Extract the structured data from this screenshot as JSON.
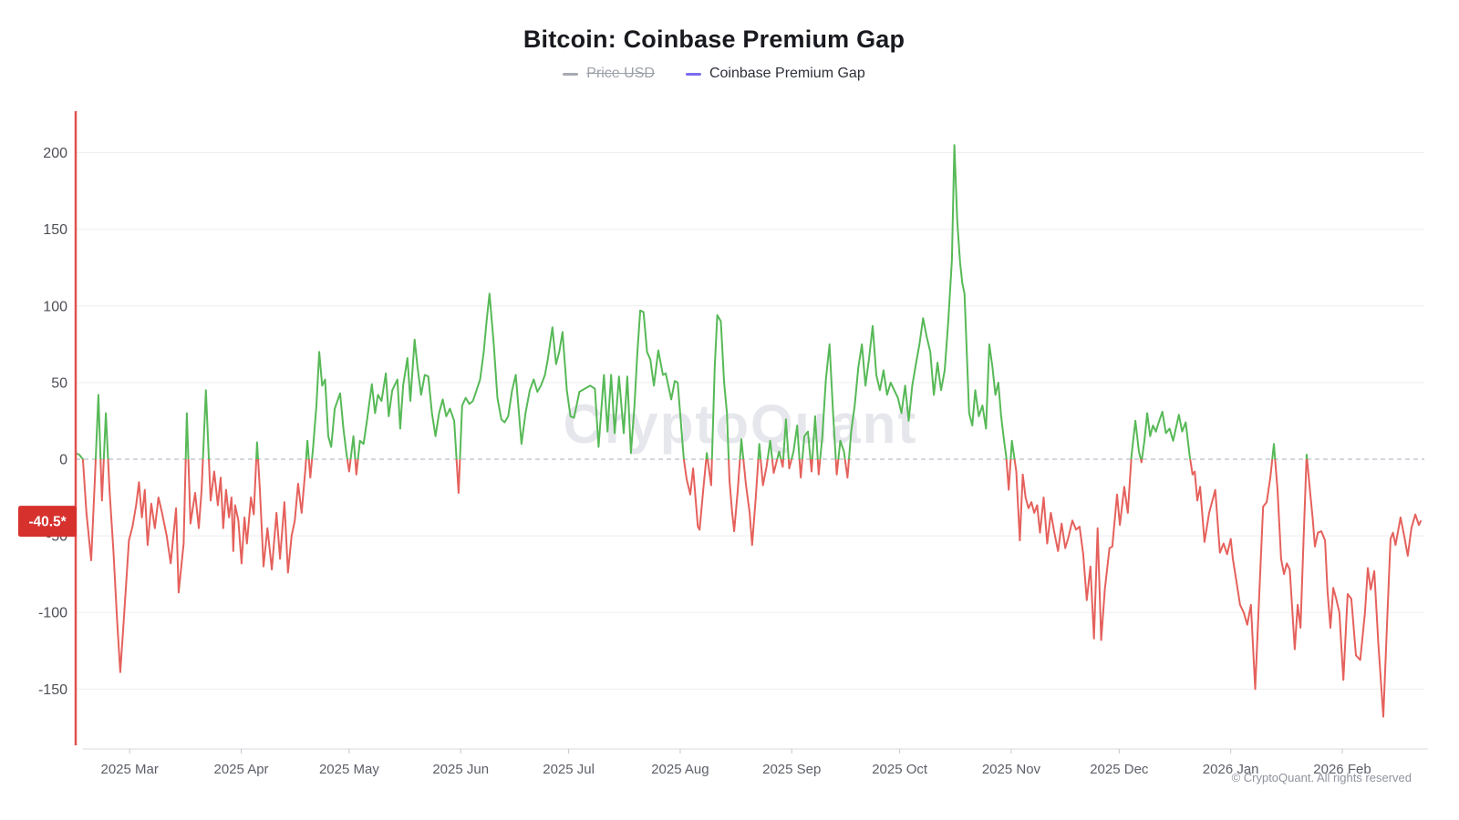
{
  "header": {
    "title": "Bitcoin: Coinbase Premium Gap"
  },
  "legend": [
    {
      "label": "Price USD",
      "color": "#a8aab3",
      "disabled": true
    },
    {
      "label": "Coinbase Premium Gap",
      "color": "#7b6cf0",
      "disabled": false
    }
  ],
  "watermark": "CryptoQuant",
  "footer": {
    "copyright": "© CryptoQuant. All rights reserved"
  },
  "last_value_badge": {
    "text": "-40.5*",
    "value": -40.5,
    "color": "#d7312e"
  },
  "chart_data": {
    "type": "line",
    "title": "Bitcoin: Coinbase Premium Gap",
    "series_name": "Coinbase Premium Gap",
    "x_unit": "days since 2025-02-14",
    "final_value": -40.5,
    "ylim": [
      -190,
      227
    ],
    "grid": true,
    "legend_position": "top",
    "zero_line_dashed": true,
    "colors": {
      "positive": "#57b957",
      "negative": "#e5615c",
      "axis_line": "#e2514d"
    },
    "y_ticks": [
      {
        "label": "200",
        "value": 200
      },
      {
        "label": "150",
        "value": 150
      },
      {
        "label": "100",
        "value": 100
      },
      {
        "label": "50",
        "value": 50
      },
      {
        "label": "0",
        "value": 0
      },
      {
        "label": "-50",
        "value": -50
      },
      {
        "label": "-100",
        "value": -100
      },
      {
        "label": "-150",
        "value": -150
      }
    ],
    "x_ticks": [
      {
        "label": "2025 Mar",
        "day": 15
      },
      {
        "label": "2025 Apr",
        "day": 46
      },
      {
        "label": "2025 May",
        "day": 76
      },
      {
        "label": "2025 Jun",
        "day": 107
      },
      {
        "label": "2025 Jul",
        "day": 137
      },
      {
        "label": "2025 Aug",
        "day": 168
      },
      {
        "label": "2025 Sep",
        "day": 199
      },
      {
        "label": "2025 Oct",
        "day": 229
      },
      {
        "label": "2025 Nov",
        "day": 260
      },
      {
        "label": "2025 Dec",
        "day": 290
      },
      {
        "label": "2026 Jan",
        "day": 321
      },
      {
        "label": "2026 Feb",
        "day": 352
      }
    ],
    "points": [
      [
        0,
        4
      ],
      [
        1,
        3
      ],
      [
        2,
        0
      ],
      [
        3,
        -35
      ],
      [
        4.3,
        -66
      ],
      [
        5.3,
        -15
      ],
      [
        6.3,
        42
      ],
      [
        7.3,
        -27
      ],
      [
        8.4,
        30
      ],
      [
        9.4,
        -20
      ],
      [
        10.5,
        -60
      ],
      [
        11.5,
        -105
      ],
      [
        12.4,
        -139
      ],
      [
        13.5,
        -100
      ],
      [
        14.8,
        -53
      ],
      [
        15.8,
        -44
      ],
      [
        16.8,
        -30
      ],
      [
        17.6,
        -15
      ],
      [
        18.4,
        -38
      ],
      [
        19.2,
        -20
      ],
      [
        20,
        -56
      ],
      [
        21,
        -29
      ],
      [
        22,
        -45
      ],
      [
        23,
        -25
      ],
      [
        24,
        -35
      ],
      [
        25.3,
        -50
      ],
      [
        26.4,
        -68
      ],
      [
        27.9,
        -32
      ],
      [
        28.6,
        -87
      ],
      [
        30,
        -55
      ],
      [
        30.9,
        30
      ],
      [
        31.9,
        -42
      ],
      [
        33.2,
        -22
      ],
      [
        34.2,
        -45
      ],
      [
        35,
        -20
      ],
      [
        36.2,
        45
      ],
      [
        37.5,
        -27
      ],
      [
        38.5,
        -8
      ],
      [
        39.5,
        -30
      ],
      [
        40.3,
        -12
      ],
      [
        41,
        -45
      ],
      [
        41.8,
        -20
      ],
      [
        42.6,
        -38
      ],
      [
        43.3,
        -25
      ],
      [
        43.8,
        -60
      ],
      [
        44.3,
        -30
      ],
      [
        45.2,
        -40
      ],
      [
        46.1,
        -68
      ],
      [
        46.9,
        -38
      ],
      [
        47.6,
        -55
      ],
      [
        48.7,
        -25
      ],
      [
        49.5,
        -36
      ],
      [
        50.4,
        11
      ],
      [
        51.2,
        -20
      ],
      [
        52.2,
        -70
      ],
      [
        53.3,
        -45
      ],
      [
        54.5,
        -72
      ],
      [
        55.8,
        -35
      ],
      [
        56.8,
        -65
      ],
      [
        58,
        -28
      ],
      [
        59,
        -74
      ],
      [
        60,
        -50
      ],
      [
        60.9,
        -40
      ],
      [
        61.8,
        -16
      ],
      [
        62.8,
        -35
      ],
      [
        63.9,
        -5
      ],
      [
        64.4,
        12
      ],
      [
        65.2,
        -12
      ],
      [
        66,
        8
      ],
      [
        66.9,
        35
      ],
      [
        67.7,
        70
      ],
      [
        68.5,
        48
      ],
      [
        69.3,
        52
      ],
      [
        70.2,
        15
      ],
      [
        71,
        8
      ],
      [
        72,
        33
      ],
      [
        73.5,
        43
      ],
      [
        74.4,
        20
      ],
      [
        75.3,
        3
      ],
      [
        76,
        -8
      ],
      [
        77.2,
        15
      ],
      [
        78,
        -10
      ],
      [
        79,
        12
      ],
      [
        80,
        10
      ],
      [
        81,
        26
      ],
      [
        82.3,
        49
      ],
      [
        83.2,
        30
      ],
      [
        84,
        42
      ],
      [
        85,
        38
      ],
      [
        86.2,
        56
      ],
      [
        87,
        28
      ],
      [
        88,
        45
      ],
      [
        89.4,
        52
      ],
      [
        90.2,
        20
      ],
      [
        91,
        48
      ],
      [
        92.2,
        66
      ],
      [
        93,
        38
      ],
      [
        94.2,
        78
      ],
      [
        95,
        60
      ],
      [
        96,
        42
      ],
      [
        97,
        55
      ],
      [
        98,
        54
      ],
      [
        99,
        30
      ],
      [
        100,
        15
      ],
      [
        101,
        30
      ],
      [
        102,
        39
      ],
      [
        103,
        28
      ],
      [
        104,
        33
      ],
      [
        105.2,
        25
      ],
      [
        106.4,
        -22
      ],
      [
        107.4,
        35
      ],
      [
        108.4,
        40
      ],
      [
        109.4,
        36
      ],
      [
        110.4,
        38
      ],
      [
        111.4,
        45
      ],
      [
        112.4,
        52
      ],
      [
        113.4,
        70
      ],
      [
        114.2,
        90
      ],
      [
        115,
        108
      ],
      [
        116.2,
        75
      ],
      [
        117.2,
        40
      ],
      [
        118.3,
        26
      ],
      [
        119.2,
        24
      ],
      [
        120.2,
        28
      ],
      [
        121.3,
        45
      ],
      [
        122.3,
        55
      ],
      [
        123.9,
        10
      ],
      [
        125,
        30
      ],
      [
        126.2,
        45
      ],
      [
        127.3,
        52
      ],
      [
        128.3,
        44
      ],
      [
        129.3,
        48
      ],
      [
        130.4,
        55
      ],
      [
        131.2,
        65
      ],
      [
        132.5,
        86
      ],
      [
        133.5,
        62
      ],
      [
        134.4,
        70
      ],
      [
        135.3,
        83
      ],
      [
        136.5,
        45
      ],
      [
        137.5,
        28
      ],
      [
        138.5,
        27
      ],
      [
        140,
        44
      ],
      [
        141.5,
        46
      ],
      [
        143,
        48
      ],
      [
        144.3,
        46
      ],
      [
        145.3,
        8
      ],
      [
        146.8,
        55
      ],
      [
        147.8,
        18
      ],
      [
        148.8,
        55
      ],
      [
        149.8,
        17
      ],
      [
        151,
        54
      ],
      [
        152.3,
        17
      ],
      [
        153.3,
        54
      ],
      [
        154.3,
        4
      ],
      [
        155.3,
        35
      ],
      [
        156.1,
        70
      ],
      [
        156.9,
        97
      ],
      [
        157.8,
        96
      ],
      [
        158.8,
        70
      ],
      [
        159.7,
        65
      ],
      [
        160.7,
        48
      ],
      [
        161.9,
        71
      ],
      [
        163.2,
        55
      ],
      [
        164,
        56
      ],
      [
        165.5,
        39
      ],
      [
        166.5,
        51
      ],
      [
        167.3,
        50
      ],
      [
        169,
        0
      ],
      [
        169.8,
        -13
      ],
      [
        170.8,
        -23
      ],
      [
        171.6,
        -6
      ],
      [
        172.9,
        -44
      ],
      [
        173.4,
        -46
      ],
      [
        174.4,
        -20
      ],
      [
        175.4,
        4
      ],
      [
        176.6,
        -17
      ],
      [
        177.6,
        60
      ],
      [
        178.3,
        94
      ],
      [
        179.3,
        90
      ],
      [
        180.2,
        50
      ],
      [
        181,
        30
      ],
      [
        181.7,
        -14
      ],
      [
        182.4,
        -34
      ],
      [
        183,
        -47
      ],
      [
        184,
        -20
      ],
      [
        185,
        13
      ],
      [
        186.3,
        -17
      ],
      [
        187.3,
        -35
      ],
      [
        188,
        -56
      ],
      [
        189,
        -25
      ],
      [
        190,
        10
      ],
      [
        191,
        -17
      ],
      [
        192,
        -5
      ],
      [
        193,
        12
      ],
      [
        194,
        -9
      ],
      [
        195.5,
        5
      ],
      [
        196.5,
        -5
      ],
      [
        197.4,
        26
      ],
      [
        198.3,
        -6
      ],
      [
        199.5,
        5
      ],
      [
        200.5,
        22
      ],
      [
        201.5,
        -12
      ],
      [
        202.5,
        15
      ],
      [
        203.5,
        18
      ],
      [
        204.5,
        -8
      ],
      [
        205.5,
        28
      ],
      [
        206.5,
        -10
      ],
      [
        207.5,
        15
      ],
      [
        208.5,
        52
      ],
      [
        209.5,
        75
      ],
      [
        210.5,
        30
      ],
      [
        211.5,
        -10
      ],
      [
        212.5,
        12
      ],
      [
        213.5,
        5
      ],
      [
        214.5,
        -12
      ],
      [
        215.5,
        18
      ],
      [
        216.5,
        35
      ],
      [
        217.5,
        60
      ],
      [
        218.5,
        75
      ],
      [
        219.5,
        48
      ],
      [
        220.5,
        66
      ],
      [
        221.5,
        87
      ],
      [
        222.5,
        55
      ],
      [
        223.5,
        45
      ],
      [
        224.5,
        58
      ],
      [
        225.5,
        42
      ],
      [
        226.5,
        50
      ],
      [
        227.5,
        45
      ],
      [
        228.5,
        40
      ],
      [
        229.5,
        30
      ],
      [
        230.5,
        48
      ],
      [
        231.5,
        25
      ],
      [
        232.5,
        48
      ],
      [
        233.5,
        62
      ],
      [
        234.5,
        75
      ],
      [
        235.5,
        92
      ],
      [
        236.5,
        80
      ],
      [
        237.5,
        70
      ],
      [
        238.5,
        42
      ],
      [
        239.5,
        63
      ],
      [
        240.5,
        45
      ],
      [
        241.5,
        58
      ],
      [
        242.5,
        90
      ],
      [
        243.5,
        130
      ],
      [
        244.2,
        205
      ],
      [
        245,
        155
      ],
      [
        245.8,
        128
      ],
      [
        246.4,
        115
      ],
      [
        247,
        108
      ],
      [
        248.3,
        30
      ],
      [
        249.2,
        22
      ],
      [
        250,
        45
      ],
      [
        251,
        28
      ],
      [
        252,
        35
      ],
      [
        253,
        20
      ],
      [
        253.9,
        75
      ],
      [
        254.8,
        60
      ],
      [
        255.6,
        42
      ],
      [
        256.4,
        50
      ],
      [
        257.2,
        28
      ],
      [
        258,
        12
      ],
      [
        258.6,
        2
      ],
      [
        259.3,
        -20
      ],
      [
        260.2,
        12
      ],
      [
        261.4,
        -8
      ],
      [
        262.4,
        -53
      ],
      [
        263.2,
        -10
      ],
      [
        264,
        -25
      ],
      [
        264.8,
        -32
      ],
      [
        265.6,
        -28
      ],
      [
        266.4,
        -35
      ],
      [
        267.2,
        -30
      ],
      [
        268,
        -48
      ],
      [
        269,
        -25
      ],
      [
        270,
        -55
      ],
      [
        271,
        -35
      ],
      [
        272,
        -48
      ],
      [
        273,
        -60
      ],
      [
        274,
        -42
      ],
      [
        275,
        -58
      ],
      [
        276,
        -50
      ],
      [
        277,
        -40
      ],
      [
        278,
        -46
      ],
      [
        279,
        -44
      ],
      [
        280,
        -62
      ],
      [
        281,
        -92
      ],
      [
        282,
        -70
      ],
      [
        283,
        -117
      ],
      [
        284,
        -45
      ],
      [
        285,
        -118
      ],
      [
        286,
        -85
      ],
      [
        287.3,
        -58
      ],
      [
        288.1,
        -57
      ],
      [
        289.4,
        -23
      ],
      [
        290.2,
        -43
      ],
      [
        291.4,
        -18
      ],
      [
        292.4,
        -35
      ],
      [
        293.4,
        2
      ],
      [
        294.5,
        25
      ],
      [
        295.5,
        5
      ],
      [
        296.2,
        -2
      ],
      [
        297,
        12
      ],
      [
        297.8,
        30
      ],
      [
        298.6,
        15
      ],
      [
        299.4,
        22
      ],
      [
        300.2,
        18
      ],
      [
        301,
        24
      ],
      [
        302,
        31
      ],
      [
        303,
        17
      ],
      [
        304,
        20
      ],
      [
        305,
        12
      ],
      [
        306.6,
        29
      ],
      [
        307.5,
        18
      ],
      [
        308.5,
        24
      ],
      [
        309.6,
        2
      ],
      [
        310.4,
        -10
      ],
      [
        311,
        -8
      ],
      [
        311.7,
        -27
      ],
      [
        312.5,
        -18
      ],
      [
        313.7,
        -54
      ],
      [
        315,
        -35
      ],
      [
        316.7,
        -20
      ],
      [
        318,
        -61
      ],
      [
        319,
        -55
      ],
      [
        320,
        -62
      ],
      [
        321,
        -52
      ],
      [
        321.6,
        -65
      ],
      [
        322.6,
        -80
      ],
      [
        323.6,
        -95
      ],
      [
        324.6,
        -100
      ],
      [
        325.6,
        -108
      ],
      [
        326.6,
        -95
      ],
      [
        327.8,
        -150
      ],
      [
        329,
        -85
      ],
      [
        330,
        -31
      ],
      [
        331,
        -28
      ],
      [
        332,
        -12
      ],
      [
        333,
        10
      ],
      [
        334,
        -20
      ],
      [
        335,
        -65
      ],
      [
        335.8,
        -75
      ],
      [
        336.6,
        -68
      ],
      [
        337.4,
        -72
      ],
      [
        338.8,
        -124
      ],
      [
        339.6,
        -95
      ],
      [
        340.4,
        -110
      ],
      [
        341.2,
        -55
      ],
      [
        342.1,
        3
      ],
      [
        343,
        -20
      ],
      [
        343.8,
        -39
      ],
      [
        344.4,
        -57
      ],
      [
        345.2,
        -48
      ],
      [
        346.2,
        -47
      ],
      [
        347.2,
        -53
      ],
      [
        347.9,
        -86
      ],
      [
        348.7,
        -110
      ],
      [
        349.5,
        -84
      ],
      [
        350.3,
        -91
      ],
      [
        351.2,
        -100
      ],
      [
        352.3,
        -144
      ],
      [
        353.5,
        -88
      ],
      [
        354.5,
        -91
      ],
      [
        355.8,
        -128
      ],
      [
        357,
        -131
      ],
      [
        358.3,
        -100
      ],
      [
        359.1,
        -71
      ],
      [
        359.9,
        -85
      ],
      [
        360.9,
        -73
      ],
      [
        362,
        -120
      ],
      [
        363.4,
        -168
      ],
      [
        364.4,
        -110
      ],
      [
        365.4,
        -52
      ],
      [
        366.1,
        -48
      ],
      [
        366.8,
        -56
      ],
      [
        368.2,
        -38
      ],
      [
        369.2,
        -50
      ],
      [
        370.2,
        -63
      ],
      [
        371.2,
        -45
      ],
      [
        372.3,
        -36
      ],
      [
        373.3,
        -43
      ],
      [
        373.8,
        -40.5
      ]
    ]
  }
}
